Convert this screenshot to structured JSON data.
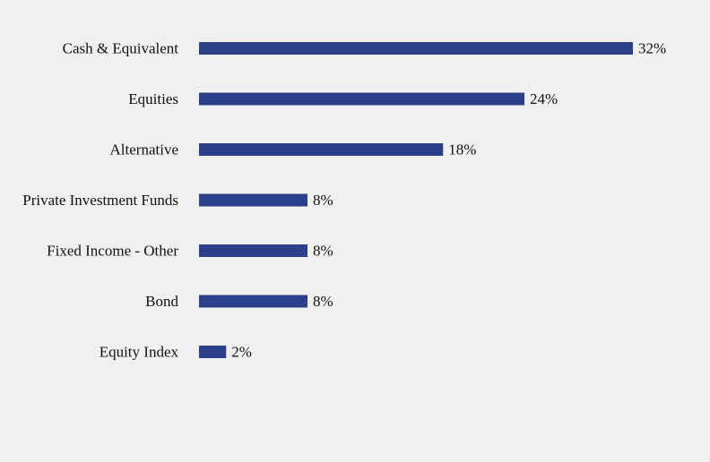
{
  "chart_data": {
    "type": "bar",
    "orientation": "horizontal",
    "title": "",
    "xlabel": "",
    "ylabel": "",
    "categories": [
      "Cash & Equivalent",
      "Equities",
      "Alternative",
      "Private Investment Funds",
      "Fixed Income - Other",
      "Bond",
      "Equity Index"
    ],
    "values": [
      32,
      24,
      18,
      8,
      8,
      8,
      2
    ],
    "value_labels": [
      "32%",
      "24%",
      "18%",
      "8%",
      "8%",
      "8%",
      "2%"
    ],
    "unit": "%",
    "xlim": [
      0,
      32
    ],
    "grid": false,
    "legend": "none",
    "bar_color": "#2b3f8a",
    "background_color": "#f0f0f0"
  }
}
